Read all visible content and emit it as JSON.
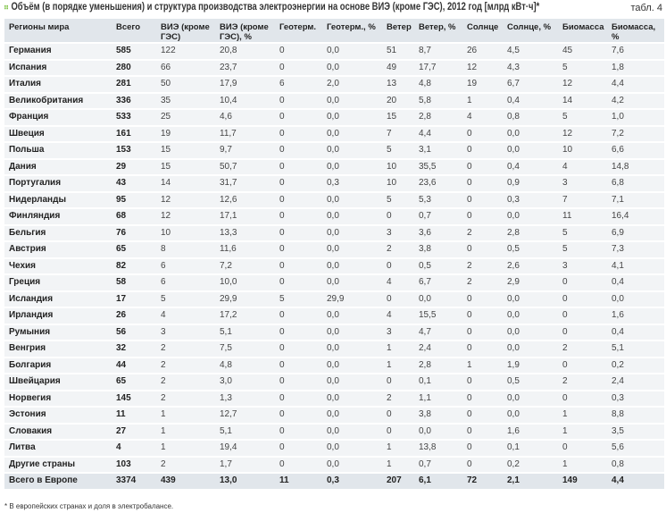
{
  "title": "Объём (в порядке уменьшения) и структура производства электроэнергии на основе ВИЭ (кроме ГЭС), 2012 год [млрд кВт·ч]*",
  "table_number": "табл. 4",
  "accent_color": "#7cc242",
  "columns": [
    "Регионы мира",
    "Всего",
    "ВИЭ (кроме ГЭС)",
    "ВИЭ (кроме ГЭС), %",
    "Геотерм.",
    "Геотерм., %",
    "Ветер",
    "Ветер, %",
    "Солнце",
    "Солнце, %",
    "Биомасса",
    "Биомасса, %"
  ],
  "rows": [
    [
      "Германия",
      "585",
      "122",
      "20,8",
      "0",
      "0,0",
      "51",
      "8,7",
      "26",
      "4,5",
      "45",
      "7,6"
    ],
    [
      "Испания",
      "280",
      "66",
      "23,7",
      "0",
      "0,0",
      "49",
      "17,7",
      "12",
      "4,3",
      "5",
      "1,8"
    ],
    [
      "Италия",
      "281",
      "50",
      "17,9",
      "6",
      "2,0",
      "13",
      "4,8",
      "19",
      "6,7",
      "12",
      "4,4"
    ],
    [
      "Великобритания",
      "336",
      "35",
      "10,4",
      "0",
      "0,0",
      "20",
      "5,8",
      "1",
      "0,4",
      "14",
      "4,2"
    ],
    [
      "Франция",
      "533",
      "25",
      "4,6",
      "0",
      "0,0",
      "15",
      "2,8",
      "4",
      "0,8",
      "5",
      "1,0"
    ],
    [
      "Швеция",
      "161",
      "19",
      "11,7",
      "0",
      "0,0",
      "7",
      "4,4",
      "0",
      "0,0",
      "12",
      "7,2"
    ],
    [
      "Польша",
      "153",
      "15",
      "9,7",
      "0",
      "0,0",
      "5",
      "3,1",
      "0",
      "0,0",
      "10",
      "6,6"
    ],
    [
      "Дания",
      "29",
      "15",
      "50,7",
      "0",
      "0,0",
      "10",
      "35,5",
      "0",
      "0,4",
      "4",
      "14,8"
    ],
    [
      "Португалия",
      "43",
      "14",
      "31,7",
      "0",
      "0,3",
      "10",
      "23,6",
      "0",
      "0,9",
      "3",
      "6,8"
    ],
    [
      "Нидерланды",
      "95",
      "12",
      "12,6",
      "0",
      "0,0",
      "5",
      "5,3",
      "0",
      "0,3",
      "7",
      "7,1"
    ],
    [
      "Финляндия",
      "68",
      "12",
      "17,1",
      "0",
      "0,0",
      "0",
      "0,7",
      "0",
      "0,0",
      "11",
      "16,4"
    ],
    [
      "Бельгия",
      "76",
      "10",
      "13,3",
      "0",
      "0,0",
      "3",
      "3,6",
      "2",
      "2,8",
      "5",
      "6,9"
    ],
    [
      "Австрия",
      "65",
      "8",
      "11,6",
      "0",
      "0,0",
      "2",
      "3,8",
      "0",
      "0,5",
      "5",
      "7,3"
    ],
    [
      "Чехия",
      "82",
      "6",
      "7,2",
      "0",
      "0,0",
      "0",
      "0,5",
      "2",
      "2,6",
      "3",
      "4,1"
    ],
    [
      "Греция",
      "58",
      "6",
      "10,0",
      "0",
      "0,0",
      "4",
      "6,7",
      "2",
      "2,9",
      "0",
      "0,4"
    ],
    [
      "Исландия",
      "17",
      "5",
      "29,9",
      "5",
      "29,9",
      "0",
      "0,0",
      "0",
      "0,0",
      "0",
      "0,0"
    ],
    [
      "Ирландия",
      "26",
      "4",
      "17,2",
      "0",
      "0,0",
      "4",
      "15,5",
      "0",
      "0,0",
      "0",
      "1,6"
    ],
    [
      "Румыния",
      "56",
      "3",
      "5,1",
      "0",
      "0,0",
      "3",
      "4,7",
      "0",
      "0,0",
      "0",
      "0,4"
    ],
    [
      "Венгрия",
      "32",
      "2",
      "7,5",
      "0",
      "0,0",
      "1",
      "2,4",
      "0",
      "0,0",
      "2",
      "5,1"
    ],
    [
      "Болгария",
      "44",
      "2",
      "4,8",
      "0",
      "0,0",
      "1",
      "2,8",
      "1",
      "1,9",
      "0",
      "0,2"
    ],
    [
      "Швейцария",
      "65",
      "2",
      "3,0",
      "0",
      "0,0",
      "0",
      "0,1",
      "0",
      "0,5",
      "2",
      "2,4"
    ],
    [
      "Норвегия",
      "145",
      "2",
      "1,3",
      "0",
      "0,0",
      "2",
      "1,1",
      "0",
      "0,0",
      "0",
      "0,3"
    ],
    [
      "Эстония",
      "11",
      "1",
      "12,7",
      "0",
      "0,0",
      "0",
      "3,8",
      "0",
      "0,0",
      "1",
      "8,8"
    ],
    [
      "Словакия",
      "27",
      "1",
      "5,1",
      "0",
      "0,0",
      "0",
      "0,0",
      "0",
      "1,6",
      "1",
      "3,5"
    ],
    [
      "Литва",
      "4",
      "1",
      "19,4",
      "0",
      "0,0",
      "1",
      "13,8",
      "0",
      "0,1",
      "0",
      "5,6"
    ],
    [
      "Другие страны",
      "103",
      "2",
      "1,7",
      "0",
      "0,0",
      "1",
      "0,7",
      "0",
      "0,2",
      "1",
      "0,8"
    ]
  ],
  "total": [
    "Всего в Европе",
    "3374",
    "439",
    "13,0",
    "11",
    "0,3",
    "207",
    "6,1",
    "72",
    "2,1",
    "149",
    "4,4"
  ],
  "footnote": "* В европейских странах и доля в электробалансе."
}
